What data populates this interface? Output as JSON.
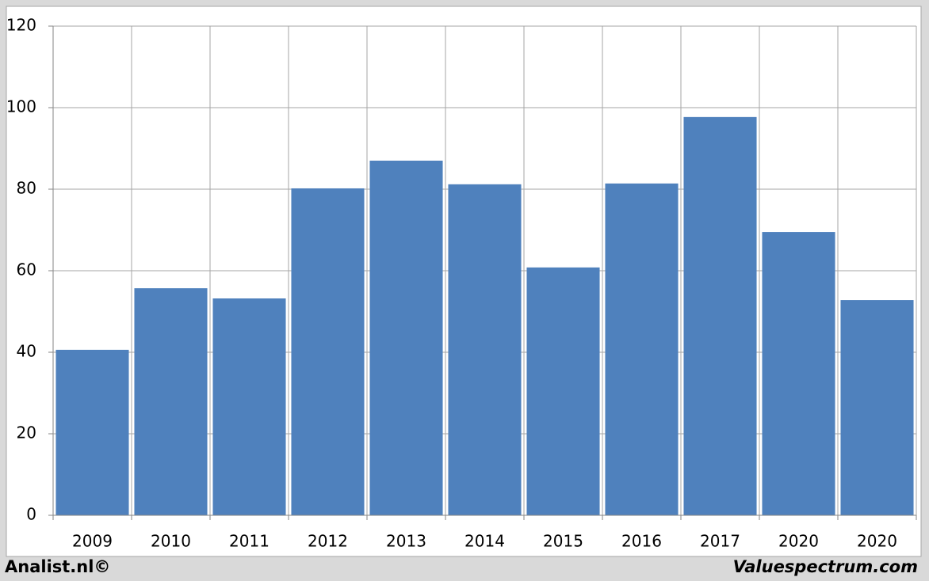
{
  "chart_data": {
    "type": "bar",
    "categories": [
      "2009",
      "2010",
      "2011",
      "2012",
      "2013",
      "2014",
      "2015",
      "2016",
      "2017",
      "2020",
      "2020"
    ],
    "values": [
      40.6,
      55.7,
      53.2,
      80.2,
      87.0,
      81.2,
      60.8,
      81.4,
      97.7,
      69.5,
      52.8
    ],
    "color": "#4f81bd",
    "ylim": [
      0,
      120
    ],
    "yticks": [
      0,
      20,
      40,
      60,
      80,
      100,
      120
    ],
    "grid": true
  },
  "footer": {
    "left": "Analist.nl©",
    "right": "Valuespectrum.com"
  }
}
